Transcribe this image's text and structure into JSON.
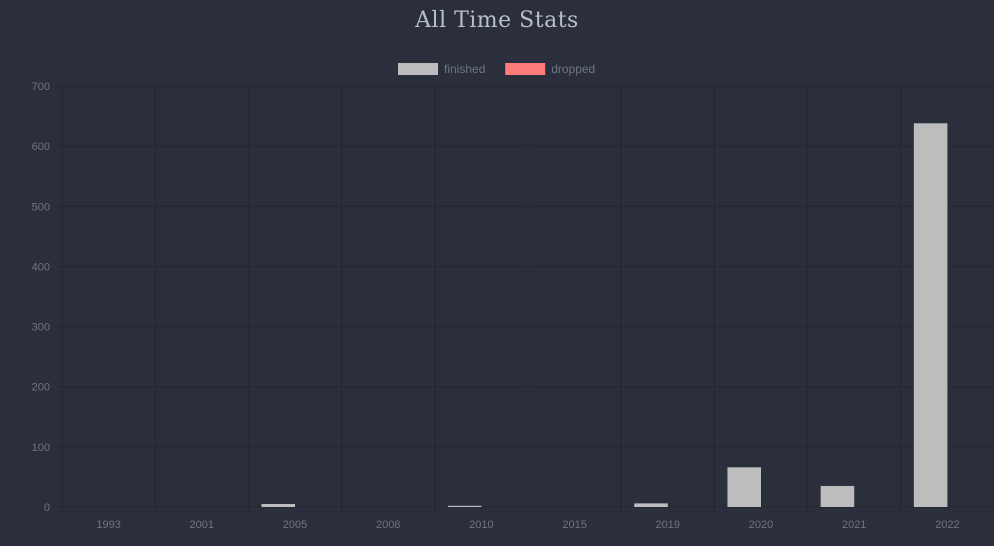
{
  "chart_data": {
    "type": "bar",
    "title": "All Time Stats",
    "categories": [
      "1993",
      "2001",
      "2005",
      "2008",
      "2010",
      "2015",
      "2019",
      "2020",
      "2021",
      "2022"
    ],
    "series": [
      {
        "name": "finished",
        "color": "#bdbdbd",
        "values": [
          0,
          0,
          5,
          0,
          2,
          0,
          6,
          66,
          35,
          638
        ]
      },
      {
        "name": "dropped",
        "color": "#ff7b7b",
        "values": [
          0,
          0,
          0,
          0,
          0,
          0,
          0,
          0,
          0,
          0
        ]
      }
    ],
    "yticks": [
      "0",
      "100",
      "200",
      "300",
      "400",
      "500",
      "600",
      "700"
    ],
    "ylim": [
      0,
      700
    ],
    "grid": true,
    "legend_position": "top"
  }
}
